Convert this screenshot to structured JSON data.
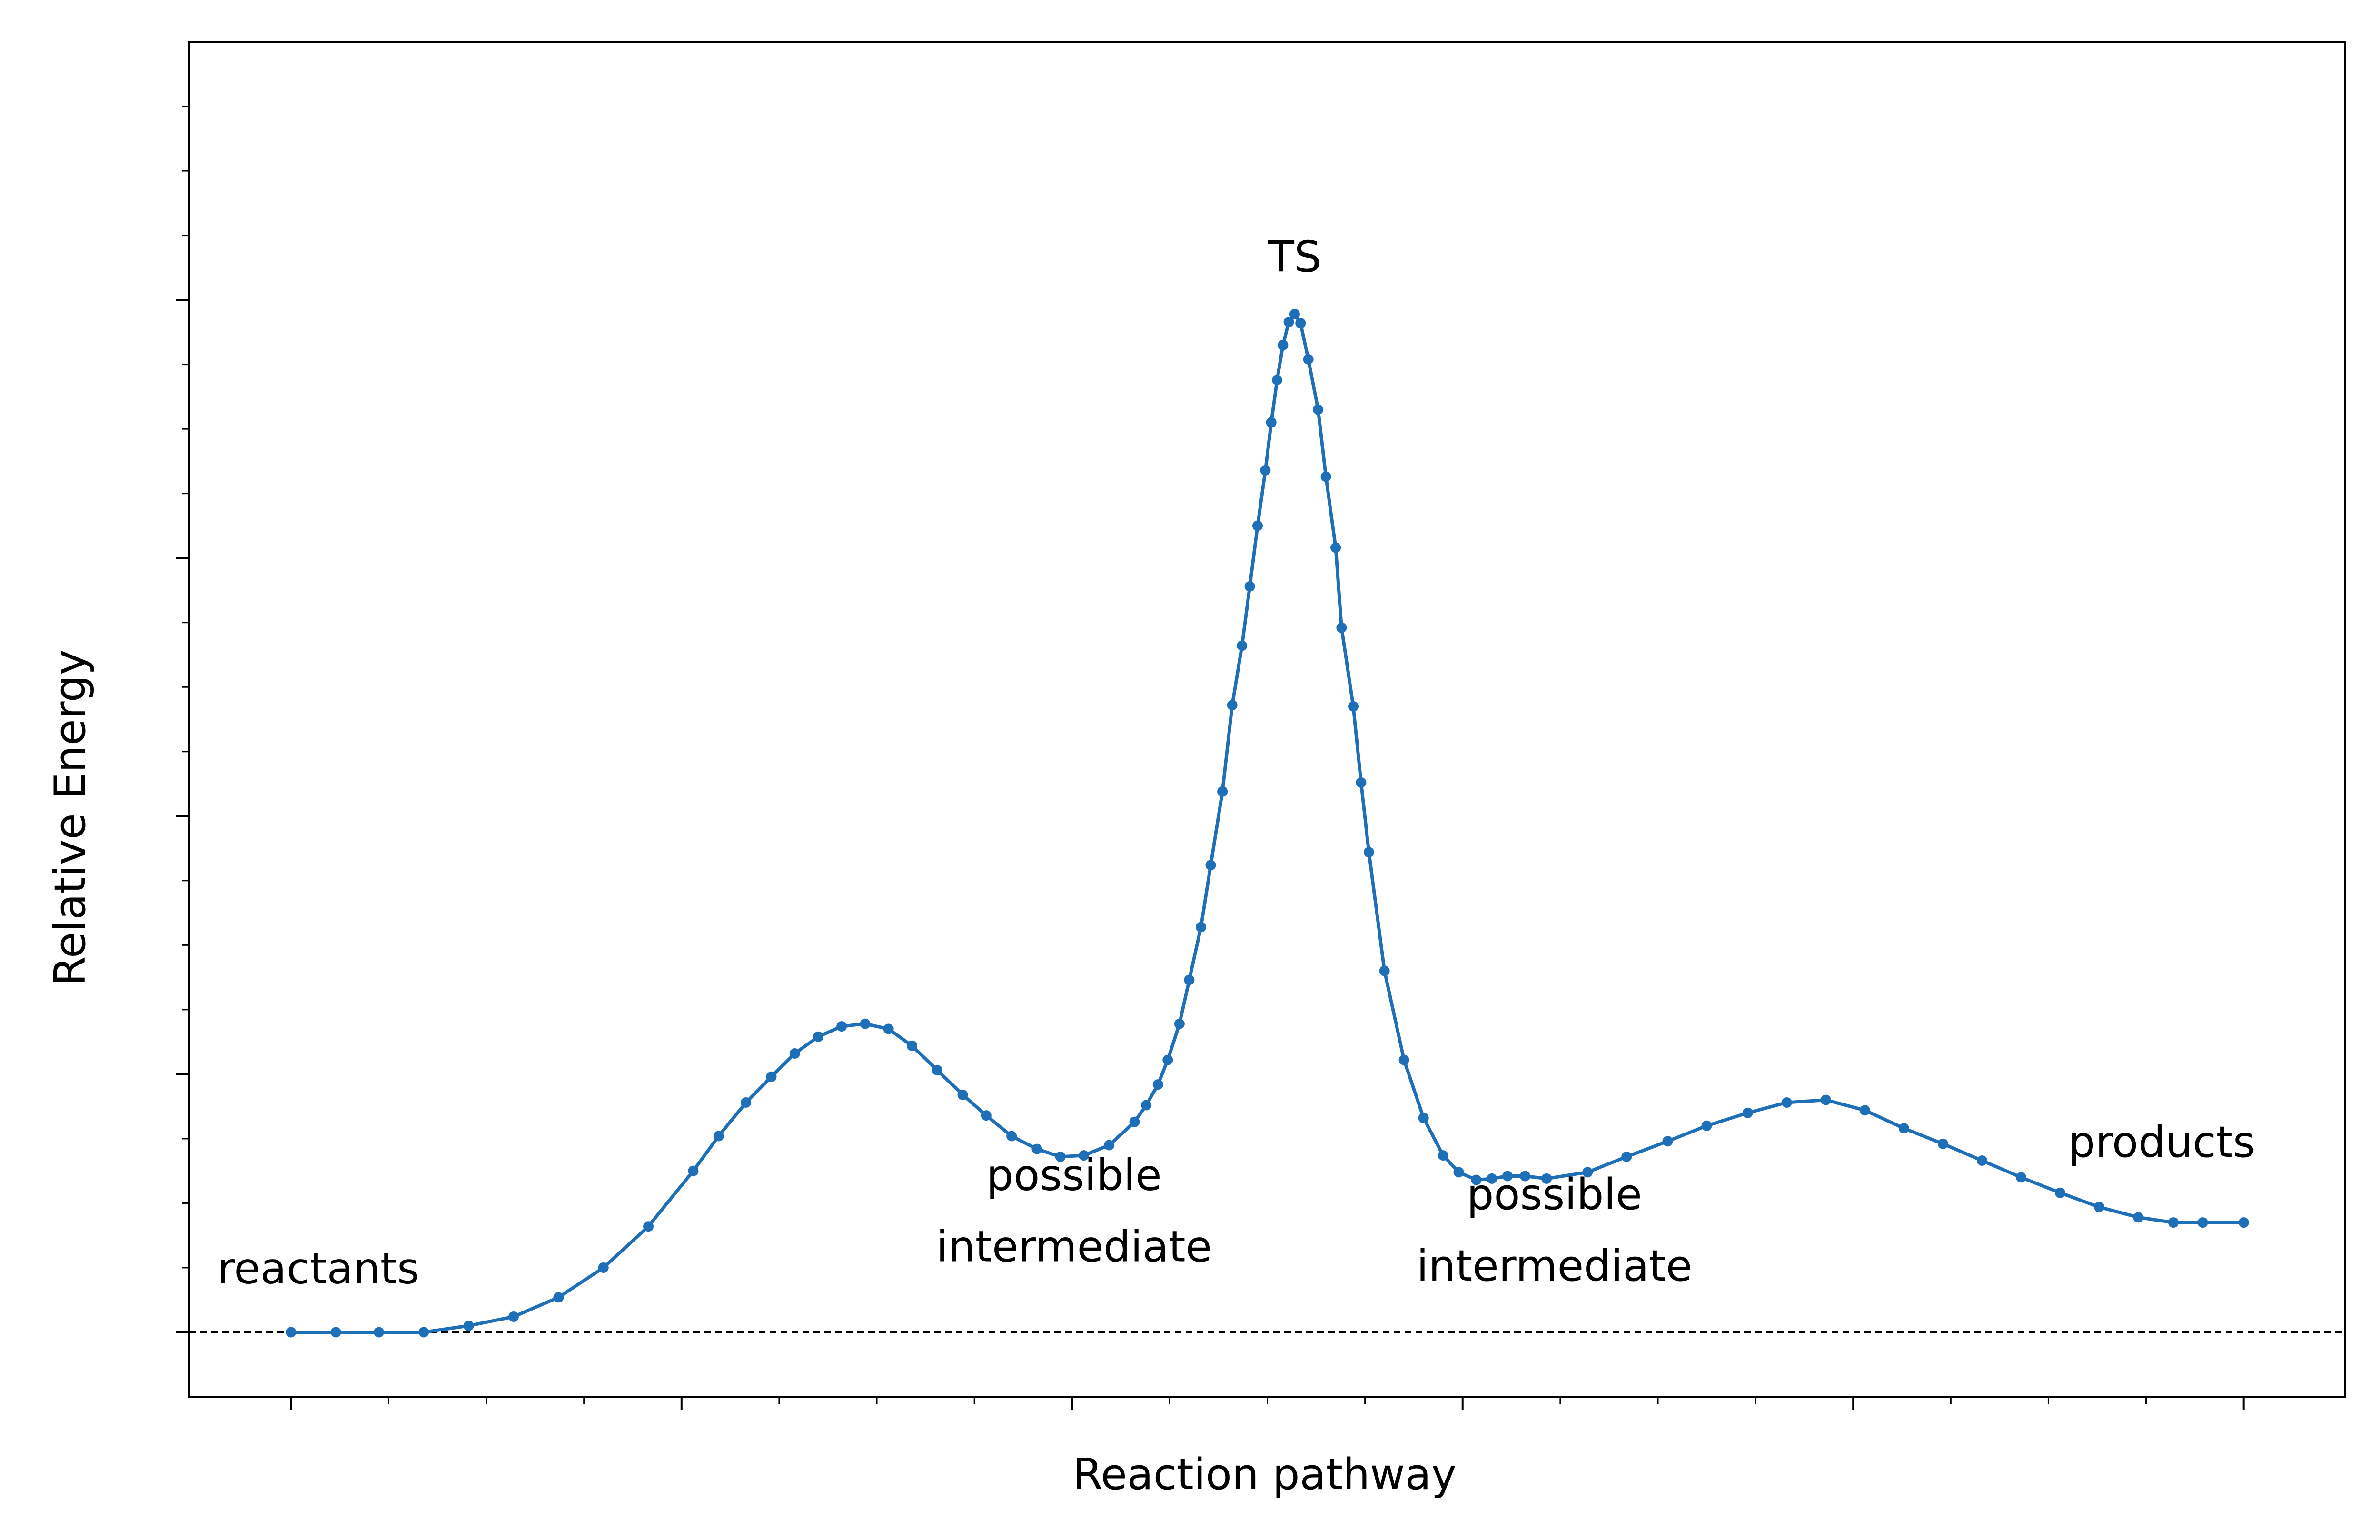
{
  "chart_data": {
    "type": "line",
    "title": "",
    "xlabel": "Reaction pathway",
    "ylabel": "Relative Energy",
    "xlim": [
      -0.052,
      1.052
    ],
    "ylim": [
      -0.05,
      1.0
    ],
    "grid": false,
    "x_ticks_labeled": false,
    "y_ticks_labeled": false,
    "baseline": {
      "y": 0.0,
      "style": "dashed"
    },
    "series": [
      {
        "marker": "circle",
        "color": "#1f6fb8",
        "points": [
          [
            0.0,
            0.0
          ],
          [
            0.023,
            0.0
          ],
          [
            0.045,
            0.0
          ],
          [
            0.068,
            0.0
          ],
          [
            0.091,
            0.005
          ],
          [
            0.114,
            0.012
          ],
          [
            0.137,
            0.027
          ],
          [
            0.16,
            0.05
          ],
          [
            0.183,
            0.082
          ],
          [
            0.206,
            0.125
          ],
          [
            0.219,
            0.152
          ],
          [
            0.233,
            0.178
          ],
          [
            0.246,
            0.198
          ],
          [
            0.258,
            0.216
          ],
          [
            0.27,
            0.229
          ],
          [
            0.282,
            0.237
          ],
          [
            0.294,
            0.239
          ],
          [
            0.306,
            0.235
          ],
          [
            0.318,
            0.222
          ],
          [
            0.331,
            0.203
          ],
          [
            0.344,
            0.184
          ],
          [
            0.356,
            0.168
          ],
          [
            0.369,
            0.152
          ],
          [
            0.382,
            0.142
          ],
          [
            0.394,
            0.136
          ],
          [
            0.406,
            0.137
          ],
          [
            0.419,
            0.145
          ],
          [
            0.432,
            0.163
          ],
          [
            0.438,
            0.176
          ],
          [
            0.444,
            0.192
          ],
          [
            0.449,
            0.211
          ],
          [
            0.455,
            0.239
          ],
          [
            0.46,
            0.273
          ],
          [
            0.466,
            0.314
          ],
          [
            0.471,
            0.362
          ],
          [
            0.477,
            0.419
          ],
          [
            0.482,
            0.486
          ],
          [
            0.487,
            0.532
          ],
          [
            0.491,
            0.578
          ],
          [
            0.495,
            0.625
          ],
          [
            0.499,
            0.668
          ],
          [
            0.502,
            0.705
          ],
          [
            0.505,
            0.738
          ],
          [
            0.508,
            0.765
          ],
          [
            0.511,
            0.783
          ],
          [
            0.514,
            0.789
          ],
          [
            0.517,
            0.782
          ],
          [
            0.521,
            0.754
          ],
          [
            0.526,
            0.715
          ],
          [
            0.53,
            0.663
          ],
          [
            0.535,
            0.608
          ],
          [
            0.538,
            0.546
          ],
          [
            0.544,
            0.485
          ],
          [
            0.548,
            0.426
          ],
          [
            0.552,
            0.372
          ],
          [
            0.56,
            0.28
          ],
          [
            0.57,
            0.211
          ],
          [
            0.58,
            0.166
          ],
          [
            0.59,
            0.137
          ],
          [
            0.598,
            0.124
          ],
          [
            0.607,
            0.118
          ],
          [
            0.615,
            0.119
          ],
          [
            0.623,
            0.121
          ],
          [
            0.632,
            0.121
          ],
          [
            0.643,
            0.119
          ],
          [
            0.664,
            0.124
          ],
          [
            0.684,
            0.136
          ],
          [
            0.705,
            0.148
          ],
          [
            0.725,
            0.16
          ],
          [
            0.746,
            0.17
          ],
          [
            0.766,
            0.178
          ],
          [
            0.786,
            0.18
          ],
          [
            0.806,
            0.172
          ],
          [
            0.826,
            0.158
          ],
          [
            0.846,
            0.146
          ],
          [
            0.866,
            0.133
          ],
          [
            0.886,
            0.12
          ],
          [
            0.906,
            0.108
          ],
          [
            0.926,
            0.097
          ],
          [
            0.946,
            0.089
          ],
          [
            0.964,
            0.085
          ],
          [
            0.979,
            0.085
          ],
          [
            1.0,
            0.085
          ]
        ]
      }
    ],
    "annotations": [
      {
        "id": "reactants",
        "lines": [
          "reactants"
        ],
        "x": 0.014,
        "y": 0.038
      },
      {
        "id": "int1",
        "lines": [
          "possible",
          "intermediate"
        ],
        "x": 0.401,
        "y": 0.055
      },
      {
        "id": "ts",
        "lines": [
          "TS"
        ],
        "x": 0.514,
        "y": 0.822
      },
      {
        "id": "int2",
        "lines": [
          "possible",
          "intermediate"
        ],
        "x": 0.647,
        "y": 0.04
      },
      {
        "id": "products",
        "lines": [
          "products"
        ],
        "x": 0.958,
        "y": 0.136
      }
    ],
    "style": {
      "line_color": "#1f6fb8",
      "axis_color": "#000000",
      "text_color": "#000000"
    }
  }
}
